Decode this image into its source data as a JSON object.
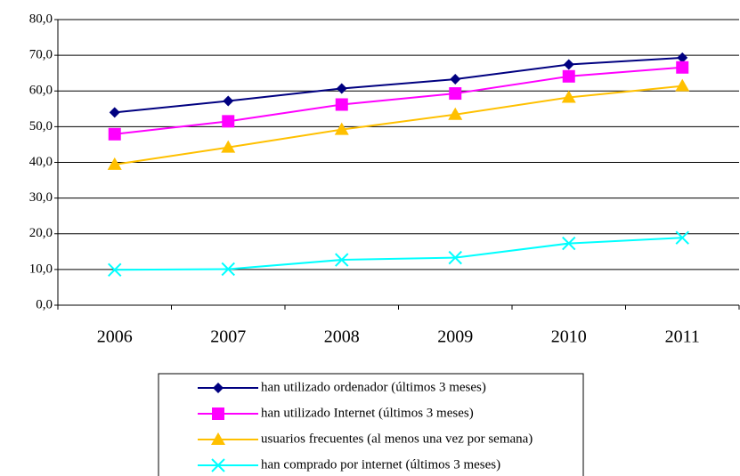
{
  "chart_data": {
    "type": "line",
    "categories": [
      "2006",
      "2007",
      "2008",
      "2009",
      "2010",
      "2011"
    ],
    "series": [
      {
        "name": "han utilizado ordenador (últimos 3 meses)",
        "color": "#000080",
        "marker": "diamond",
        "values": [
          54.0,
          57.2,
          60.7,
          63.3,
          67.4,
          69.3
        ]
      },
      {
        "name": "han utilizado Internet (últimos 3 meses)",
        "color": "#ff00ff",
        "marker": "square",
        "values": [
          47.9,
          51.5,
          56.2,
          59.3,
          64.1,
          66.6
        ]
      },
      {
        "name": "usuarios frecuentes (al menos una vez por semana)",
        "color": "#ffc000",
        "marker": "triangle",
        "values": [
          39.4,
          44.2,
          49.2,
          53.4,
          58.2,
          61.4
        ]
      },
      {
        "name": "han comprado por internet (últimos 3 meses)",
        "color": "#00ffff",
        "marker": "x",
        "values": [
          9.9,
          10.1,
          12.7,
          13.3,
          17.3,
          18.9
        ]
      }
    ],
    "ylim": [
      0,
      80
    ],
    "yticks": [
      {
        "value": 0,
        "label": "0,0"
      },
      {
        "value": 10,
        "label": "10,0"
      },
      {
        "value": 20,
        "label": "20,0"
      },
      {
        "value": 30,
        "label": "30,0"
      },
      {
        "value": 40,
        "label": "40,0"
      },
      {
        "value": 50,
        "label": "50,0"
      },
      {
        "value": 60,
        "label": "60,0"
      },
      {
        "value": 70,
        "label": "70,0"
      },
      {
        "value": 80,
        "label": "80,0"
      }
    ],
    "grid": true,
    "legend": "bottom"
  }
}
